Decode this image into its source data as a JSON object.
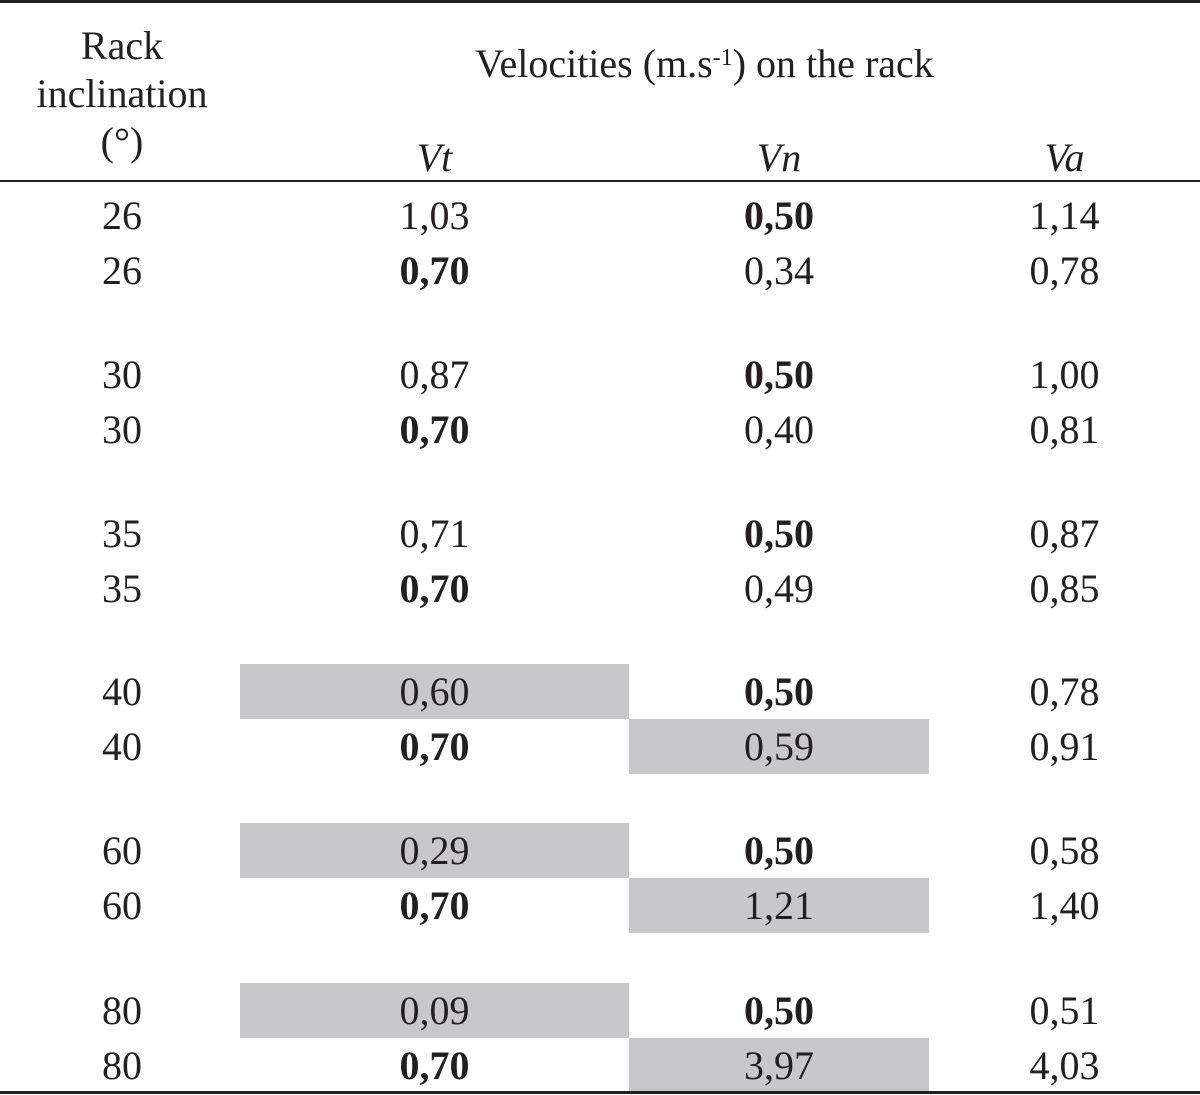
{
  "header": {
    "rack_line1": "Rack",
    "rack_line2": "inclination",
    "rack_line3": "(°)",
    "velocities_pre": "Velocities (m.s",
    "velocities_sup": "-1",
    "velocities_post": ") on the rack",
    "col_vt": "Vt",
    "col_vn": "Vn",
    "col_va": "Va"
  },
  "rows": [
    {
      "inc": "26",
      "vt": "1,03",
      "vn": "0,50",
      "va": "1,14"
    },
    {
      "inc": "26",
      "vt": "0,70",
      "vn": "0,34",
      "va": "0,78"
    },
    {
      "inc": "30",
      "vt": "0,87",
      "vn": "0,50",
      "va": "1,00"
    },
    {
      "inc": "30",
      "vt": "0,70",
      "vn": "0,40",
      "va": "0,81"
    },
    {
      "inc": "35",
      "vt": "0,71",
      "vn": "0,50",
      "va": "0,87"
    },
    {
      "inc": "35",
      "vt": "0,70",
      "vn": "0,49",
      "va": "0,85"
    },
    {
      "inc": "40",
      "vt": "0,60",
      "vn": "0,50",
      "va": "0,78"
    },
    {
      "inc": "40",
      "vt": "0,70",
      "vn": "0,59",
      "va": "0,91"
    },
    {
      "inc": "60",
      "vt": "0,29",
      "vn": "0,50",
      "va": "0,58"
    },
    {
      "inc": "60",
      "vt": "0,70",
      "vn": "1,21",
      "va": "1,40"
    },
    {
      "inc": "80",
      "vt": "0,09",
      "vn": "0,50",
      "va": "0,51"
    },
    {
      "inc": "80",
      "vt": "0,70",
      "vn": "3,97",
      "va": "4,03"
    }
  ]
}
